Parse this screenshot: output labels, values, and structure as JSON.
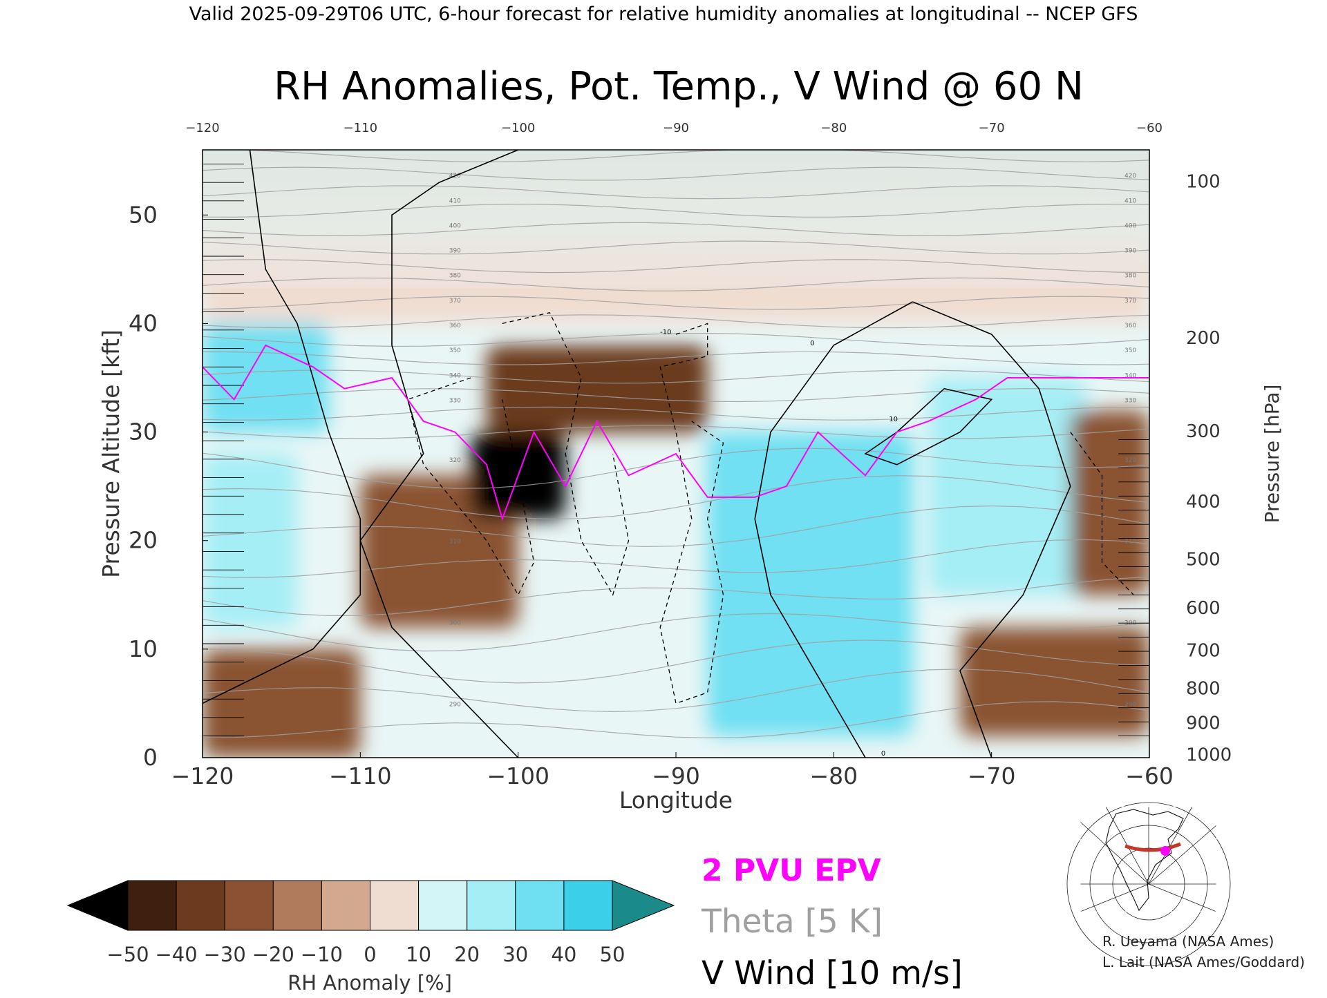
{
  "header": {
    "valid_line": "Valid 2025-09-29T06 UTC, 6-hour forecast for relative humidity anomalies at longitudinal -- NCEP GFS",
    "title": "RH Anomalies, Pot. Temp., V Wind @ 60 N"
  },
  "legend": {
    "epv_label": "2 PVU EPV",
    "theta_label": "Theta [5 K]",
    "wind_label": "V Wind [10 m/s]",
    "epv_color": "#ff00ff",
    "theta_color": "#a0a0a0",
    "wind_color": "#000000"
  },
  "credits": {
    "line1": "R. Ueyama (NASA Ames)",
    "line2": "L. Lait (NASA Ames/Goddard)"
  },
  "chart_data": {
    "type": "heatmap",
    "title": "RH Anomalies, Pot. Temp., V Wind @ 60 N",
    "xlabel": "Longitude",
    "ylabel_left": "Pressure Altitude [kft]",
    "ylabel_right": "Pressure [hPa]",
    "xlim": [
      -120,
      -60
    ],
    "ylim": [
      0,
      56
    ],
    "x_ticks": [
      -120,
      -110,
      -100,
      -90,
      -80,
      -70,
      -60
    ],
    "x_tick_labels": [
      "−120",
      "−110",
      "−100",
      "−90",
      "−80",
      "−70",
      "−60"
    ],
    "y_ticks_left": [
      0,
      10,
      20,
      30,
      40,
      50
    ],
    "pressure_ticks": [
      {
        "label": "100",
        "kft": 53.1
      },
      {
        "label": "200",
        "kft": 38.7
      },
      {
        "label": "300",
        "kft": 30.1
      },
      {
        "label": "400",
        "kft": 23.6
      },
      {
        "label": "500",
        "kft": 18.3
      },
      {
        "label": "600",
        "kft": 13.8
      },
      {
        "label": "700",
        "kft": 9.9
      },
      {
        "label": "800",
        "kft": 6.4
      },
      {
        "label": "900",
        "kft": 3.2
      },
      {
        "label": "1000",
        "kft": 0.3
      }
    ],
    "colorbar": {
      "label": "RH Anomaly [%]",
      "ticks": [
        "−50",
        "−40",
        "−30",
        "−20",
        "−10",
        "0",
        "10",
        "20",
        "30",
        "40",
        "50"
      ],
      "colors": [
        "#3e1f10",
        "#6b3a1f",
        "#8a5232",
        "#b07b5c",
        "#d2a88f",
        "#f0ddd2",
        "#d4f5f8",
        "#a6eef6",
        "#6fe0f2",
        "#3ccfea",
        "#16a9c8"
      ],
      "under_color": "#000000",
      "over_color": "#1a8a8a"
    },
    "rh_anomaly_regions": [
      {
        "x": [
          -120,
          -112
        ],
        "y": [
          30,
          40
        ],
        "rh": 30
      },
      {
        "x": [
          -120,
          -114
        ],
        "y": [
          12,
          28
        ],
        "rh": 25
      },
      {
        "x": [
          -120,
          -110
        ],
        "y": [
          0,
          10
        ],
        "rh": -25
      },
      {
        "x": [
          -110,
          -100
        ],
        "y": [
          12,
          26
        ],
        "rh": -30
      },
      {
        "x": [
          -103,
          -97
        ],
        "y": [
          22,
          30
        ],
        "rh": -50
      },
      {
        "x": [
          -102,
          -88
        ],
        "y": [
          30,
          38
        ],
        "rh": -35
      },
      {
        "x": [
          -88,
          -75
        ],
        "y": [
          2,
          30
        ],
        "rh": 35
      },
      {
        "x": [
          -74,
          -64
        ],
        "y": [
          15,
          35
        ],
        "rh": 25
      },
      {
        "x": [
          -72,
          -60
        ],
        "y": [
          2,
          12
        ],
        "rh": -25
      },
      {
        "x": [
          -65,
          -60
        ],
        "y": [
          15,
          32
        ],
        "rh": -30
      },
      {
        "x": [
          -120,
          -60
        ],
        "y": [
          40,
          56
        ],
        "rh": 0
      }
    ],
    "theta_contour_labels": [
      "290",
      "300",
      "310",
      "320",
      "330",
      "340",
      "350",
      "360",
      "370",
      "380",
      "390",
      "400",
      "410",
      "420"
    ],
    "v_wind_contour_labels": [
      "-10",
      "0",
      "10"
    ],
    "epv_2pvu_line": [
      {
        "lon": -120,
        "kft": 36
      },
      {
        "lon": -118,
        "kft": 33
      },
      {
        "lon": -116,
        "kft": 38
      },
      {
        "lon": -113,
        "kft": 36
      },
      {
        "lon": -111,
        "kft": 34
      },
      {
        "lon": -108,
        "kft": 35
      },
      {
        "lon": -106,
        "kft": 31
      },
      {
        "lon": -104,
        "kft": 30
      },
      {
        "lon": -102,
        "kft": 27
      },
      {
        "lon": -101,
        "kft": 22
      },
      {
        "lon": -99,
        "kft": 30
      },
      {
        "lon": -97,
        "kft": 25
      },
      {
        "lon": -95,
        "kft": 31
      },
      {
        "lon": -93,
        "kft": 26
      },
      {
        "lon": -90,
        "kft": 28
      },
      {
        "lon": -88,
        "kft": 24
      },
      {
        "lon": -85,
        "kft": 24
      },
      {
        "lon": -83,
        "kft": 25
      },
      {
        "lon": -81,
        "kft": 30
      },
      {
        "lon": -78,
        "kft": 26
      },
      {
        "lon": -76,
        "kft": 30
      },
      {
        "lon": -74,
        "kft": 31
      },
      {
        "lon": -71,
        "kft": 33
      },
      {
        "lon": -69,
        "kft": 35
      },
      {
        "lon": -65,
        "kft": 35
      },
      {
        "lon": -60,
        "kft": 35
      }
    ]
  }
}
